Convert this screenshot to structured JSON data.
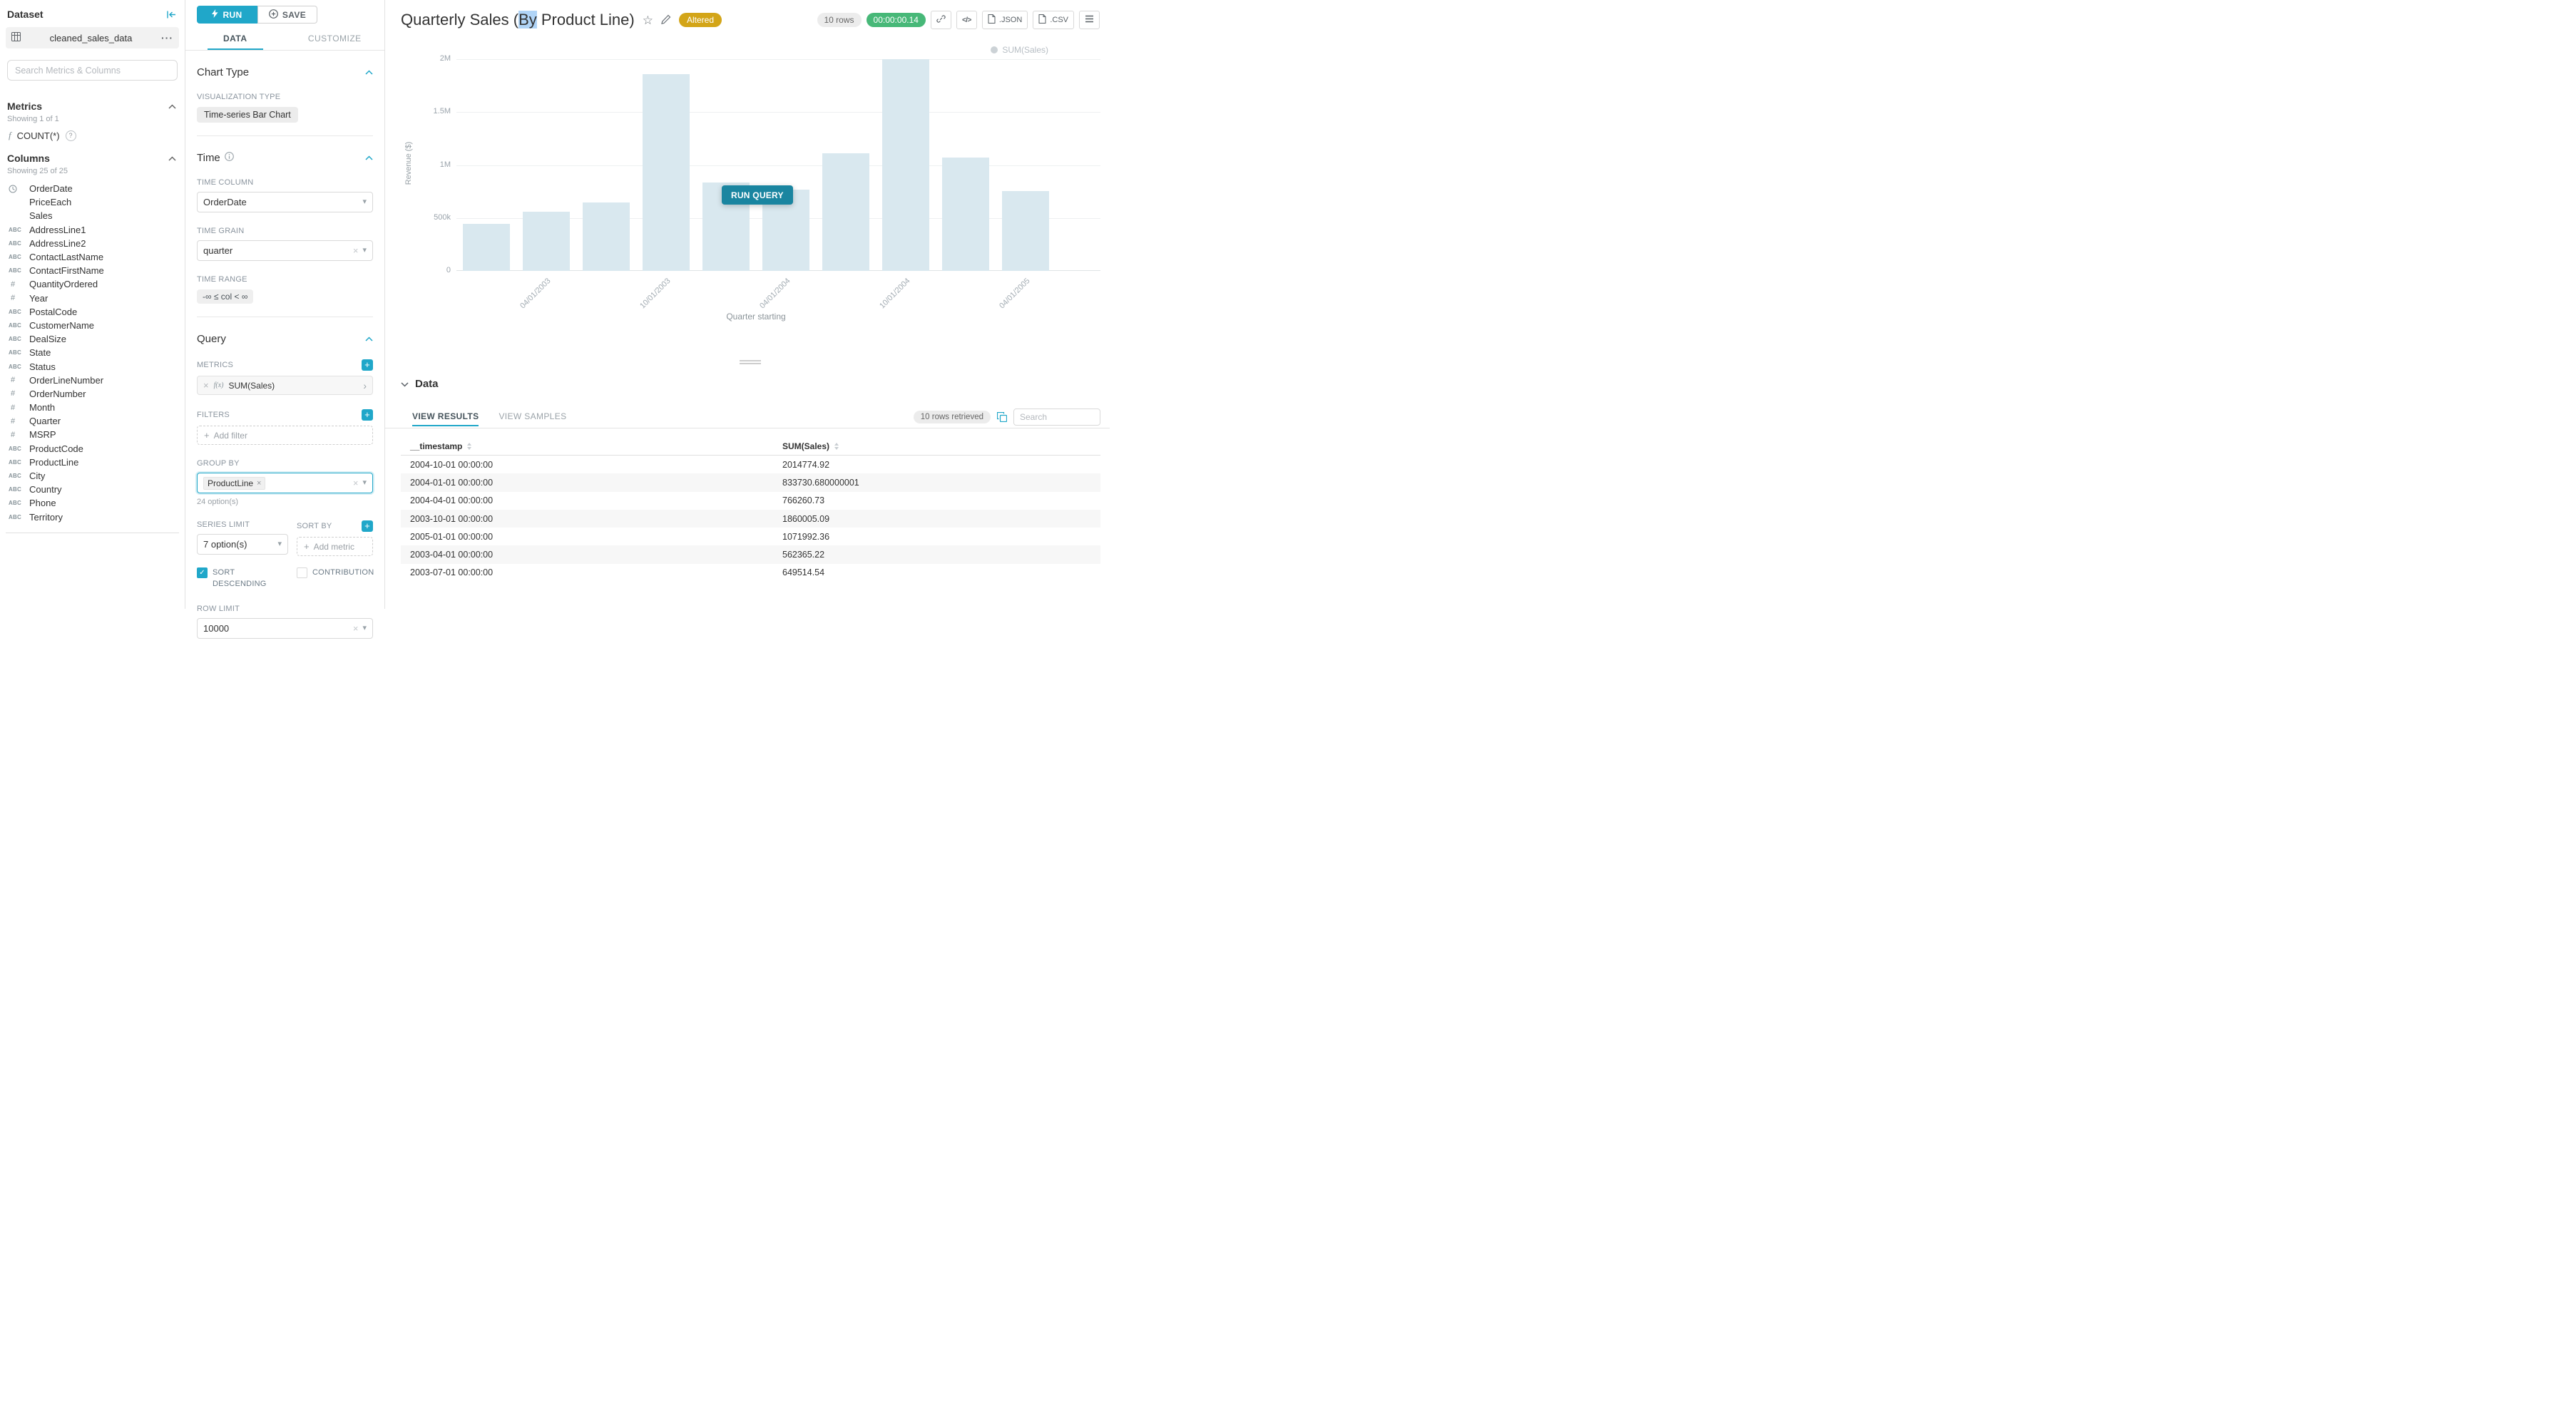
{
  "colors": {
    "accent": "#20a7c9",
    "accent_dark": "#1a85a0",
    "altered_bg": "#d3a518",
    "timer_bg": "#47b878",
    "bar_fill": "#d9e8ef",
    "selection": "#b0d4f7"
  },
  "sidebar": {
    "title": "Dataset",
    "dataset_name": "cleaned_sales_data",
    "search_placeholder": "Search Metrics & Columns",
    "metrics": {
      "title": "Metrics",
      "showing": "Showing 1 of 1",
      "fn": "f",
      "items": [
        {
          "label": "COUNT(*)"
        }
      ]
    },
    "columns": {
      "title": "Columns",
      "showing": "Showing 25 of 25",
      "items": [
        {
          "type": "time",
          "label": "OrderDate"
        },
        {
          "type": "none",
          "label": "PriceEach"
        },
        {
          "type": "none",
          "label": "Sales"
        },
        {
          "type": "abc",
          "label": "AddressLine1"
        },
        {
          "type": "abc",
          "label": "AddressLine2"
        },
        {
          "type": "abc",
          "label": "ContactLastName"
        },
        {
          "type": "abc",
          "label": "ContactFirstName"
        },
        {
          "type": "num",
          "label": "QuantityOrdered"
        },
        {
          "type": "num",
          "label": "Year"
        },
        {
          "type": "abc",
          "label": "PostalCode"
        },
        {
          "type": "abc",
          "label": "CustomerName"
        },
        {
          "type": "abc",
          "label": "DealSize"
        },
        {
          "type": "abc",
          "label": "State"
        },
        {
          "type": "abc",
          "label": "Status"
        },
        {
          "type": "num",
          "label": "OrderLineNumber"
        },
        {
          "type": "num",
          "label": "OrderNumber"
        },
        {
          "type": "num",
          "label": "Month"
        },
        {
          "type": "num",
          "label": "Quarter"
        },
        {
          "type": "num",
          "label": "MSRP"
        },
        {
          "type": "abc",
          "label": "ProductCode"
        },
        {
          "type": "abc",
          "label": "ProductLine"
        },
        {
          "type": "abc",
          "label": "City"
        },
        {
          "type": "abc",
          "label": "Country"
        },
        {
          "type": "abc",
          "label": "Phone"
        },
        {
          "type": "abc",
          "label": "Territory"
        }
      ]
    }
  },
  "controls": {
    "run_label": "RUN",
    "save_label": "SAVE",
    "tabs": [
      {
        "label": "DATA",
        "active": true
      },
      {
        "label": "CUSTOMIZE",
        "active": false
      }
    ],
    "chart_type": {
      "title": "Chart Type",
      "viz_label": "VISUALIZATION TYPE",
      "viz_value": "Time-series Bar Chart"
    },
    "time": {
      "title": "Time",
      "column_label": "TIME COLUMN",
      "column_value": "OrderDate",
      "grain_label": "TIME GRAIN",
      "grain_value": "quarter",
      "range_label": "TIME RANGE",
      "range_value": "-∞ ≤ col < ∞"
    },
    "query": {
      "title": "Query",
      "metrics_label": "METRICS",
      "metric_fn": "f(x)",
      "metric": "SUM(Sales)",
      "filters_label": "FILTERS",
      "add_filter": "Add filter",
      "group_by_label": "GROUP BY",
      "group_by_value": "ProductLine",
      "options_hint": "24 option(s)",
      "series_limit_label": "SERIES LIMIT",
      "series_limit_value": "7 option(s)",
      "sort_by_label": "SORT BY",
      "add_metric": "Add metric",
      "sort_descending": "SORT DESCENDING",
      "contribution": "CONTRIBUTION",
      "row_limit_label": "ROW LIMIT",
      "row_limit_value": "10000"
    }
  },
  "main": {
    "title": {
      "prefix": "Quarterly Sales (",
      "highlight": "By",
      "suffix": " Product Line)"
    },
    "altered_label": "Altered",
    "rows_badge": "10 rows",
    "timer": "00:00:00.14",
    "export_json": ".JSON",
    "export_csv": ".CSV",
    "run_query_label": "RUN QUERY",
    "data_panel": {
      "title": "Data",
      "tabs": [
        {
          "label": "VIEW RESULTS",
          "active": true
        },
        {
          "label": "VIEW SAMPLES",
          "active": false
        }
      ],
      "rows_retrieved": "10 rows retrieved",
      "search_placeholder": "Search",
      "table": {
        "columns": [
          "__timestamp",
          "SUM(Sales)"
        ],
        "rows": [
          [
            "2004-10-01 00:00:00",
            "2014774.92"
          ],
          [
            "2004-01-01 00:00:00",
            "833730.680000001"
          ],
          [
            "2004-04-01 00:00:00",
            "766260.73"
          ],
          [
            "2003-10-01 00:00:00",
            "1860005.09"
          ],
          [
            "2005-01-01 00:00:00",
            "1071992.36"
          ],
          [
            "2003-04-01 00:00:00",
            "562365.22"
          ],
          [
            "2003-07-01 00:00:00",
            "649514.54"
          ]
        ]
      }
    }
  },
  "chart_data": {
    "type": "bar",
    "title": "Quarterly Sales (By Product Line)",
    "series_name": "SUM(Sales)",
    "x": [
      "2003-01-01",
      "2003-04-01",
      "2003-07-01",
      "2003-10-01",
      "2004-01-01",
      "2004-04-01",
      "2004-07-01",
      "2004-10-01",
      "2005-01-01",
      "2005-04-01"
    ],
    "values": [
      447000,
      562365.22,
      649514.54,
      1860005.09,
      833730.68,
      766260.73,
      1110000,
      2014774.92,
      1071992.36,
      755000
    ],
    "xlabel": "Quarter starting",
    "ylabel": "Revenue ($)",
    "ylim": [
      0,
      2000000
    ],
    "yticks": [
      "0",
      "500k",
      "1M",
      "1.5M",
      "2M"
    ],
    "xticks": [
      "04/01/2003",
      "10/01/2003",
      "04/01/2004",
      "10/01/2004",
      "04/01/2005"
    ],
    "xtick_slots": [
      1,
      3,
      5,
      7,
      9
    ],
    "legend": [
      "SUM(Sales)"
    ],
    "legend_position": "top-right",
    "grid": true
  }
}
